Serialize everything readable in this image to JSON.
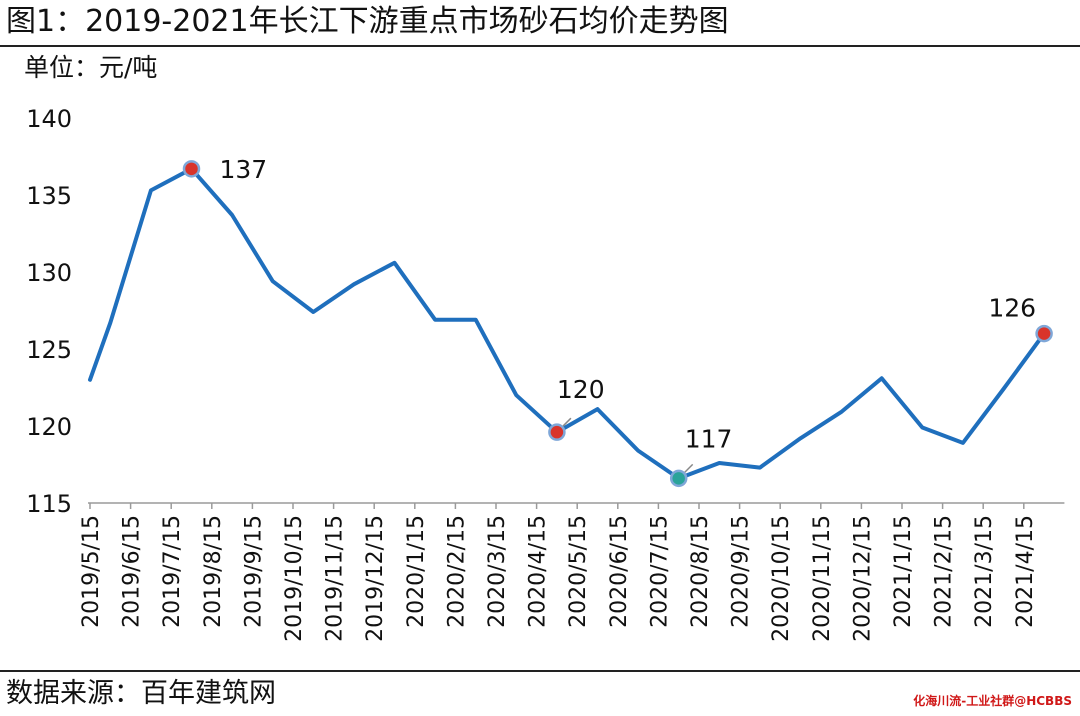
{
  "title": "图1：2019-2021年长江下游重点市场砂石均价走势图",
  "unit": "单位：元/吨",
  "source": "数据来源：百年建筑网",
  "watermark": "化海川流-工业社群@HCBBS",
  "chart_data": {
    "type": "line",
    "title": "图1：2019-2021年长江下游重点市场砂石均价走势图",
    "ylabel": "单位：元/吨",
    "xlabel": "",
    "ylim": [
      115,
      140
    ],
    "yticks": [
      115,
      120,
      125,
      130,
      135,
      140
    ],
    "grid": false,
    "categories": [
      "2019/5/15",
      "2019/6/15",
      "2019/7/15",
      "2019/8/15",
      "2019/9/15",
      "2019/10/15",
      "2019/11/15",
      "2019/12/15",
      "2020/1/15",
      "2020/2/15",
      "2020/3/15",
      "2020/4/15",
      "2020/5/15",
      "2020/6/15",
      "2020/7/15",
      "2020/8/15",
      "2020/9/15",
      "2020/10/15",
      "2020/11/15",
      "2020/12/15",
      "2021/1/15",
      "2021/2/15",
      "2021/3/15",
      "2021/4/15"
    ],
    "series": [
      {
        "color": "#1f6fbd",
        "points": [
          [
            0,
            123.0
          ],
          [
            0.5,
            126.7
          ],
          [
            1.5,
            135.3
          ],
          [
            2.5,
            136.7
          ],
          [
            3.5,
            133.7
          ],
          [
            4.5,
            129.4
          ],
          [
            5.5,
            127.4
          ],
          [
            6.5,
            129.2
          ],
          [
            7.5,
            130.6
          ],
          [
            8.5,
            126.9
          ],
          [
            9.5,
            126.9
          ],
          [
            10.5,
            122.0
          ],
          [
            11.5,
            119.6
          ],
          [
            12.5,
            121.1
          ],
          [
            13.5,
            118.4
          ],
          [
            14.5,
            116.6
          ],
          [
            15.5,
            117.6
          ],
          [
            16.5,
            117.3
          ],
          [
            17.5,
            119.2
          ],
          [
            18.5,
            120.9
          ],
          [
            19.5,
            123.1
          ],
          [
            20.5,
            119.9
          ],
          [
            21.5,
            118.9
          ],
          [
            22.5,
            122.4
          ],
          [
            23.5,
            126.0
          ]
        ]
      }
    ],
    "annotations": [
      {
        "label": "137",
        "x": 2.5,
        "y": 136.7,
        "marker": "#d9342b"
      },
      {
        "label": "120",
        "x": 11.5,
        "y": 119.6,
        "marker": "#d9342b"
      },
      {
        "label": "117",
        "x": 14.5,
        "y": 116.6,
        "marker": "#2aa39a"
      },
      {
        "label": "126",
        "x": 23.5,
        "y": 126.0,
        "marker": "#d9342b"
      }
    ]
  }
}
